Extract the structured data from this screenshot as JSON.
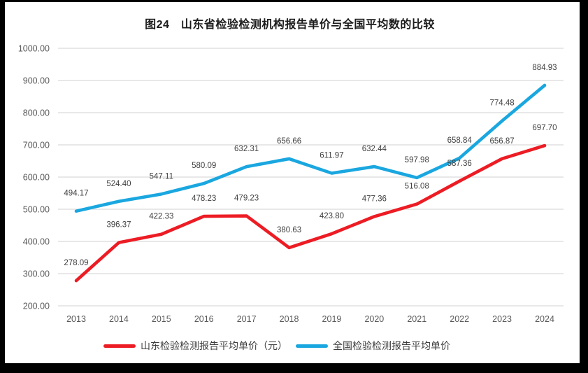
{
  "chart_data": {
    "type": "line",
    "title": "图24　山东省检验检测机构报告单价与全国平均数的比较",
    "xlabel": "",
    "ylabel": "",
    "x": [
      2013,
      2014,
      2015,
      2016,
      2017,
      2018,
      2019,
      2020,
      2021,
      2022,
      2023,
      2024
    ],
    "series": [
      {
        "id": "shandong",
        "name": "山东检验检测报告平均单价（元）",
        "color": "#ed1c24",
        "values": [
          278.09,
          396.37,
          422.33,
          478.23,
          479.23,
          380.63,
          423.8,
          477.36,
          516.08,
          587.36,
          656.87,
          697.7
        ]
      },
      {
        "id": "national",
        "name": "全国检验检测报告平均单价",
        "color": "#1aa7e0",
        "values": [
          494.17,
          524.4,
          547.11,
          580.09,
          632.31,
          656.66,
          611.97,
          632.44,
          597.98,
          658.84,
          774.48,
          884.93
        ]
      }
    ],
    "ylim": [
      200,
      1000
    ],
    "ytick_step": 100,
    "ytick_format": "0.00",
    "grid": true,
    "value_labels": true,
    "legend_position": "bottom"
  },
  "colors": {
    "grid_line": "#d9d9d9",
    "tick_label": "#595959",
    "data_label": "#404040",
    "title_text": "#1b1b1b",
    "frame": "#000000",
    "panel": "#ffffff"
  }
}
